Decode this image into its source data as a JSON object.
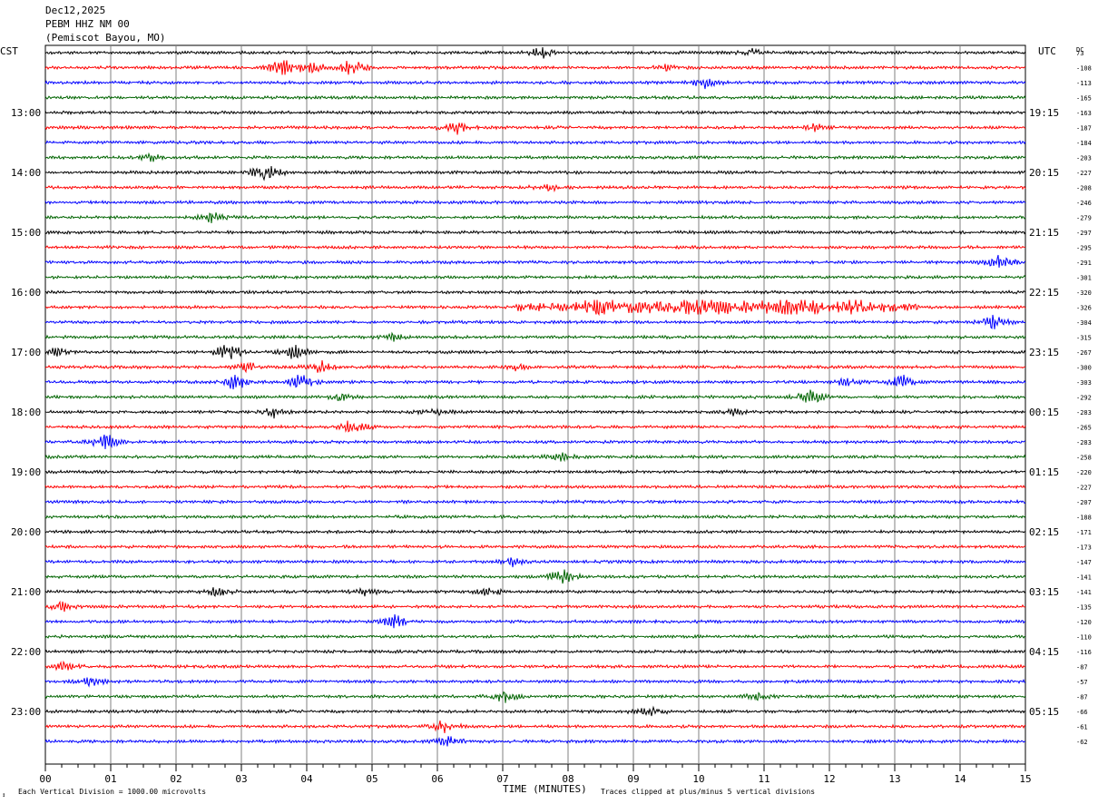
{
  "header": {
    "date": "Dec12,2025",
    "station": "PEBM HHZ NM 00",
    "location": "(Pemiscot Bayou, MO)"
  },
  "chart_data": {
    "type": "line",
    "title": "",
    "left_axis_label": "CST",
    "right_axis_label": "UTC",
    "dc_label": "DC",
    "xlabel": "TIME (MINUTES)",
    "x_ticks": [
      "00",
      "01",
      "02",
      "03",
      "04",
      "05",
      "06",
      "07",
      "08",
      "09",
      "10",
      "11",
      "12",
      "13",
      "14",
      "15"
    ],
    "xlim": [
      0,
      15
    ],
    "left_hour_labels": [
      "13:00",
      "14:00",
      "15:00",
      "16:00",
      "17:00",
      "18:00",
      "19:00",
      "20:00",
      "21:00",
      "22:00",
      "23:00"
    ],
    "right_hour_labels": [
      "19:15",
      "20:15",
      "21:15",
      "22:15",
      "23:15",
      "00:15",
      "01:15",
      "02:15",
      "03:15",
      "04:15",
      "05:15"
    ],
    "trace_colors": [
      "#000000",
      "#ff0000",
      "#0000ff",
      "#006400"
    ],
    "dc_offsets": [
      "73",
      "-108",
      "-113",
      "-165",
      "-163",
      "-187",
      "-184",
      "-203",
      "-227",
      "-208",
      "-246",
      "-279",
      "-297",
      "-295",
      "-291",
      "-301",
      "-320",
      "-326",
      "-304",
      "-315",
      "-267",
      "-300",
      "-303",
      "-292",
      "-283",
      "-265",
      "-283",
      "-258",
      "-220",
      "-227",
      "-207",
      "-188",
      "-171",
      "-173",
      "-147",
      "-141",
      "-141",
      "-135",
      "-120",
      "-110",
      "-116",
      "-87",
      "-57",
      "-87",
      "-66",
      "-61",
      "-62"
    ],
    "note_left": "Each Vertical Division = 1000.00 microvolts",
    "note_right": "Traces clipped at plus/minus 5 vertical divisions",
    "events": [
      {
        "trace": 0,
        "minute": 7.6,
        "amp": 5
      },
      {
        "trace": 0,
        "minute": 10.8,
        "amp": 3
      },
      {
        "trace": 1,
        "minute": 3.6,
        "amp": 11
      },
      {
        "trace": 1,
        "minute": 4.1,
        "amp": 5
      },
      {
        "trace": 1,
        "minute": 4.7,
        "amp": 8
      },
      {
        "trace": 1,
        "minute": 9.5,
        "amp": 3
      },
      {
        "trace": 2,
        "minute": 10.1,
        "amp": 4
      },
      {
        "trace": 5,
        "minute": 6.3,
        "amp": 6
      },
      {
        "trace": 5,
        "minute": 11.8,
        "amp": 3
      },
      {
        "trace": 7,
        "minute": 1.6,
        "amp": 3
      },
      {
        "trace": 8,
        "minute": 3.35,
        "amp": 9
      },
      {
        "trace": 9,
        "minute": 7.7,
        "amp": 3
      },
      {
        "trace": 11,
        "minute": 2.55,
        "amp": 4
      },
      {
        "trace": 14,
        "minute": 14.6,
        "amp": 8
      },
      {
        "trace": 17,
        "minute": 11.5,
        "amp": 8
      },
      {
        "trace": 17,
        "minute": 8.5,
        "amp": 7
      },
      {
        "trace": 17,
        "minute": 10.0,
        "amp": 8
      },
      {
        "trace": 17,
        "minute": 12.4,
        "amp": 7
      },
      {
        "trace": 18,
        "minute": 14.5,
        "amp": 6
      },
      {
        "trace": 19,
        "minute": 5.3,
        "amp": 3
      },
      {
        "trace": 20,
        "minute": 0.2,
        "amp": 4
      },
      {
        "trace": 20,
        "minute": 2.8,
        "amp": 8
      },
      {
        "trace": 20,
        "minute": 3.8,
        "amp": 7
      },
      {
        "trace": 21,
        "minute": 3.1,
        "amp": 5
      },
      {
        "trace": 21,
        "minute": 4.2,
        "amp": 5
      },
      {
        "trace": 21,
        "minute": 7.2,
        "amp": 3
      },
      {
        "trace": 22,
        "minute": 2.9,
        "amp": 7
      },
      {
        "trace": 22,
        "minute": 3.9,
        "amp": 7
      },
      {
        "trace": 22,
        "minute": 12.3,
        "amp": 4
      },
      {
        "trace": 22,
        "minute": 13.1,
        "amp": 6
      },
      {
        "trace": 23,
        "minute": 4.5,
        "amp": 3
      },
      {
        "trace": 23,
        "minute": 11.7,
        "amp": 8
      },
      {
        "trace": 24,
        "minute": 3.5,
        "amp": 4
      },
      {
        "trace": 24,
        "minute": 5.95,
        "amp": 3
      },
      {
        "trace": 24,
        "minute": 10.5,
        "amp": 3
      },
      {
        "trace": 25,
        "minute": 4.7,
        "amp": 7
      },
      {
        "trace": 26,
        "minute": 0.9,
        "amp": 8
      },
      {
        "trace": 27,
        "minute": 7.9,
        "amp": 3
      },
      {
        "trace": 34,
        "minute": 7.15,
        "amp": 3
      },
      {
        "trace": 35,
        "minute": 7.9,
        "amp": 7
      },
      {
        "trace": 36,
        "minute": 2.65,
        "amp": 4
      },
      {
        "trace": 36,
        "minute": 4.9,
        "amp": 3
      },
      {
        "trace": 36,
        "minute": 6.8,
        "amp": 4
      },
      {
        "trace": 37,
        "minute": 0.25,
        "amp": 4
      },
      {
        "trace": 38,
        "minute": 5.35,
        "amp": 6
      },
      {
        "trace": 41,
        "minute": 0.3,
        "amp": 3
      },
      {
        "trace": 42,
        "minute": 0.7,
        "amp": 4
      },
      {
        "trace": 43,
        "minute": 7.0,
        "amp": 6
      },
      {
        "trace": 43,
        "minute": 10.9,
        "amp": 3
      },
      {
        "trace": 44,
        "minute": 9.25,
        "amp": 4
      },
      {
        "trace": 45,
        "minute": 6.1,
        "amp": 5
      },
      {
        "trace": 46,
        "minute": 6.2,
        "amp": 5
      }
    ],
    "long_event": {
      "trace": 17,
      "start": 7.2,
      "end": 13.4,
      "amp": 4
    },
    "grid": true
  }
}
